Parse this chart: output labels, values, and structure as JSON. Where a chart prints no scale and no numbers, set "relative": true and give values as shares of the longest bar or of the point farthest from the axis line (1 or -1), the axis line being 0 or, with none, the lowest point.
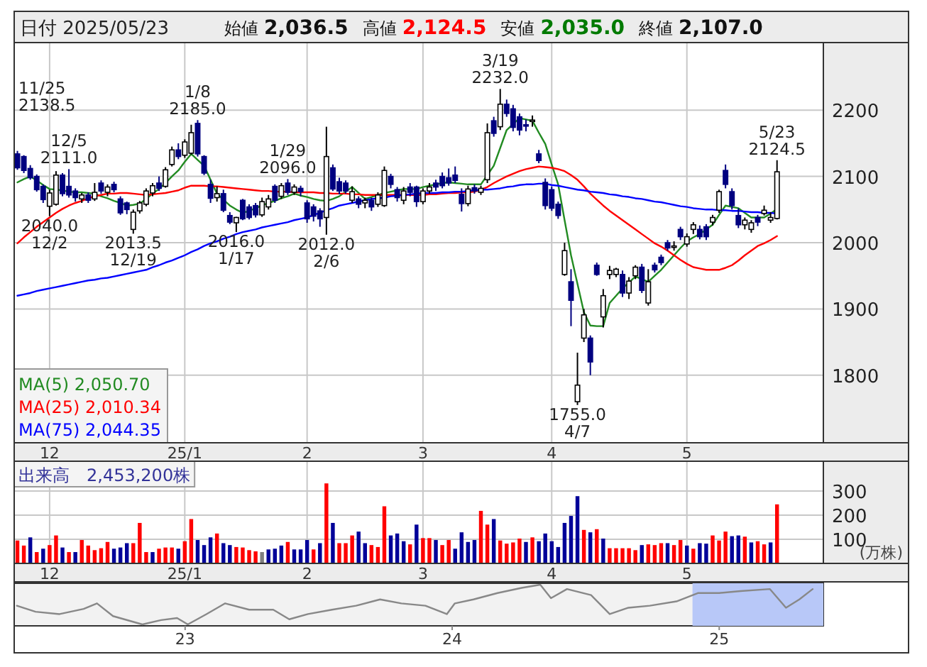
{
  "chart_data": [
    {
      "type": "candlestick",
      "title": "日付 2025/05/23",
      "subtitle": "始値 2,036.5 高値 2,124.5 安値 2,035.0 終値 2,107.0",
      "categories": [
        null,
        null,
        null,
        null,
        null,
        "12",
        null,
        null,
        null,
        null,
        null,
        null,
        null,
        null,
        null,
        null,
        null,
        null,
        null,
        null,
        null,
        null,
        null,
        null,
        null,
        null,
        "25/1",
        null,
        null,
        null,
        null,
        null,
        null,
        null,
        null,
        null,
        null,
        null,
        null,
        null,
        null,
        null,
        null,
        null,
        null,
        "2",
        null,
        null,
        null,
        null,
        null,
        null,
        null,
        null,
        null,
        null,
        null,
        null,
        null,
        null,
        null,
        null,
        null,
        "3",
        null,
        null,
        null,
        null,
        null,
        null,
        null,
        null,
        null,
        null,
        null,
        null,
        null,
        null,
        null,
        null,
        null,
        null,
        null,
        "4",
        null,
        null,
        null,
        null,
        null,
        null,
        null,
        null,
        null,
        null,
        null,
        null,
        null,
        null,
        null,
        null,
        null,
        null,
        null,
        null,
        "5",
        null,
        null,
        null,
        null,
        null,
        null,
        null,
        null,
        null,
        null,
        null,
        null,
        null,
        null
      ],
      "ohlc": [
        [
          2134,
          2138.5,
          2110,
          2113
        ],
        [
          2130,
          2132,
          2105,
          2109
        ],
        [
          2112,
          2117,
          2095,
          2098
        ],
        [
          2100,
          2103,
          2077,
          2080
        ],
        [
          2085,
          2088,
          2060,
          2065
        ],
        [
          2055,
          2080,
          2040,
          2075
        ],
        [
          2058,
          2108,
          2056,
          2102
        ],
        [
          2102,
          2105,
          2070,
          2074
        ],
        [
          2085,
          2111,
          2068,
          2072
        ],
        [
          2078,
          2082,
          2062,
          2068
        ],
        [
          2066,
          2075,
          2060,
          2072
        ],
        [
          2072,
          2076,
          2060,
          2064
        ],
        [
          2066,
          2090,
          2063,
          2076
        ],
        [
          2090,
          2094,
          2074,
          2078
        ],
        [
          2076,
          2088,
          2070,
          2084
        ],
        [
          2088,
          2092,
          2076,
          2080
        ],
        [
          2066,
          2070,
          2042,
          2045
        ],
        [
          2060,
          2062,
          2043,
          2050
        ],
        [
          2020,
          2050,
          2013.5,
          2046
        ],
        [
          2048,
          2063,
          2044,
          2060
        ],
        [
          2058,
          2082,
          2055,
          2078
        ],
        [
          2075,
          2090,
          2070,
          2086
        ],
        [
          2090,
          2100,
          2078,
          2082
        ],
        [
          2085,
          2114,
          2083,
          2110
        ],
        [
          2118,
          2145,
          2115,
          2140
        ],
        [
          2140,
          2150,
          2126,
          2130
        ],
        [
          2132,
          2156,
          2128,
          2152
        ],
        [
          2135,
          2178,
          2133,
          2166
        ],
        [
          2180,
          2185,
          2130,
          2134
        ],
        [
          2130,
          2132,
          2102,
          2105
        ],
        [
          2088,
          2095,
          2060,
          2067
        ],
        [
          2068,
          2085,
          2062,
          2074
        ],
        [
          2074,
          2080,
          2046,
          2049
        ],
        [
          2041,
          2046,
          2028,
          2031
        ],
        [
          2030,
          2039,
          2016,
          2038
        ],
        [
          2064,
          2066,
          2034,
          2036
        ],
        [
          2054,
          2058,
          2035,
          2038
        ],
        [
          2056,
          2060,
          2038,
          2042
        ],
        [
          2042,
          2068,
          2039,
          2062
        ],
        [
          2054,
          2072,
          2050,
          2066
        ],
        [
          2085,
          2088,
          2060,
          2064
        ],
        [
          2070,
          2090,
          2066,
          2086
        ],
        [
          2090,
          2096,
          2072,
          2076
        ],
        [
          2076,
          2088,
          2072,
          2084
        ],
        [
          2082,
          2086,
          2070,
          2077
        ],
        [
          2060,
          2064,
          2030,
          2036
        ],
        [
          2054,
          2058,
          2032,
          2040
        ],
        [
          2048,
          2052,
          2024,
          2036
        ],
        [
          2038,
          2175,
          2012,
          2130
        ],
        [
          2113,
          2118,
          2078,
          2081
        ],
        [
          2092,
          2098,
          2073,
          2078
        ],
        [
          2090,
          2094,
          2074,
          2078
        ],
        [
          2064,
          2085,
          2060,
          2077
        ],
        [
          2066,
          2070,
          2052,
          2058
        ],
        [
          2060,
          2068,
          2052,
          2064
        ],
        [
          2064,
          2068,
          2048,
          2054
        ],
        [
          2058,
          2076,
          2054,
          2072
        ],
        [
          2056,
          2115,
          2054,
          2109
        ],
        [
          2100,
          2104,
          2082,
          2088
        ],
        [
          2080,
          2084,
          2062,
          2068
        ],
        [
          2064,
          2084,
          2058,
          2078
        ],
        [
          2084,
          2090,
          2070,
          2076
        ],
        [
          2084,
          2086,
          2054,
          2062
        ],
        [
          2062,
          2082,
          2058,
          2078
        ],
        [
          2078,
          2090,
          2074,
          2084
        ],
        [
          2090,
          2095,
          2078,
          2084
        ],
        [
          2100,
          2106,
          2082,
          2086
        ],
        [
          2098,
          2112,
          2086,
          2090
        ],
        [
          2102,
          2115,
          2090,
          2094
        ],
        [
          2073,
          2082,
          2047,
          2059
        ],
        [
          2059,
          2086,
          2055,
          2081
        ],
        [
          2083,
          2088,
          2074,
          2078
        ],
        [
          2076,
          2086,
          2072,
          2082
        ],
        [
          2095,
          2180,
          2090,
          2166
        ],
        [
          2184,
          2190,
          2160,
          2165
        ],
        [
          2175,
          2232,
          2170,
          2209
        ],
        [
          2209,
          2216,
          2190,
          2195
        ],
        [
          2202,
          2208,
          2168,
          2174
        ],
        [
          2190,
          2195,
          2162,
          2170
        ],
        [
          2178,
          2186,
          2168,
          2176
        ],
        [
          2184,
          2192,
          2175,
          2185
        ],
        [
          2134,
          2140,
          2120,
          2124
        ],
        [
          2091,
          2097,
          2050,
          2056
        ],
        [
          2080,
          2085,
          2048,
          2052
        ],
        [
          2058,
          2062,
          2036,
          2041
        ],
        [
          1952,
          2000,
          1950,
          1988
        ],
        [
          1941,
          1960,
          1874,
          1913
        ],
        [
          1760,
          1834,
          1755,
          1785
        ],
        [
          1856,
          1900,
          1850,
          1891
        ],
        [
          1856,
          1860,
          1800,
          1820
        ],
        [
          1966,
          1970,
          1950,
          1952
        ],
        [
          1888,
          1930,
          1872,
          1920
        ],
        [
          1952,
          1965,
          1945,
          1958
        ],
        [
          1952,
          1962,
          1948,
          1960
        ],
        [
          1952,
          1958,
          1918,
          1924
        ],
        [
          1924,
          1948,
          1915,
          1942
        ],
        [
          1950,
          1966,
          1945,
          1963
        ],
        [
          1963,
          1968,
          1924,
          1928
        ],
        [
          1909,
          1960,
          1905,
          1941
        ],
        [
          1966,
          1970,
          1955,
          1959
        ],
        [
          1978,
          1982,
          1966,
          1970
        ],
        [
          2000,
          2004,
          1988,
          1992
        ],
        [
          1994,
          2002,
          1988,
          1995
        ],
        [
          2020,
          2024,
          2004,
          2009
        ],
        [
          1998,
          2014,
          1994,
          2009
        ],
        [
          2020,
          2031,
          2013,
          2027
        ],
        [
          2020,
          2026,
          2005,
          2009
        ],
        [
          2024,
          2028,
          2004,
          2009
        ],
        [
          2031,
          2042,
          2026,
          2038
        ],
        [
          2049,
          2080,
          2045,
          2077
        ],
        [
          2109,
          2118,
          2082,
          2088
        ],
        [
          2077,
          2082,
          2050,
          2056
        ],
        [
          2041,
          2052,
          2022,
          2027
        ],
        [
          2027,
          2038,
          2020,
          2034
        ],
        [
          2020,
          2034,
          2015,
          2030
        ],
        [
          2038,
          2042,
          2025,
          2031
        ],
        [
          2044,
          2056,
          2041,
          2049
        ],
        [
          2034,
          2046,
          2030,
          2038
        ],
        [
          2036.5,
          2124.5,
          2035.0,
          2107.0
        ]
      ],
      "series": [
        {
          "name": "MA(5) 2,050.70",
          "color": "#228b22",
          "type": "line",
          "values": [
            2091,
            2096,
            2100,
            2094,
            2087,
            2081,
            2080,
            2079,
            2077,
            2076,
            2076,
            2075,
            2074,
            2070,
            2067,
            2063,
            2060,
            2056,
            2057,
            2059,
            2066,
            2074,
            2081,
            2090,
            2100,
            2109,
            2122,
            2134,
            2125,
            2116,
            2095,
            2074,
            2065,
            2056,
            2050,
            2045,
            2048,
            2052,
            2056,
            2060,
            2063,
            2067,
            2070,
            2074,
            2071,
            2069,
            2066,
            2064,
            2063,
            2066,
            2070,
            2077,
            2084,
            2075,
            2066,
            2069,
            2072,
            2075,
            2077,
            2079,
            2081,
            2081,
            2081,
            2084,
            2086,
            2088,
            2090,
            2091,
            2090,
            2089,
            2088,
            2088,
            2088,
            2102,
            2116,
            2143,
            2170,
            2179,
            2188,
            2186,
            2184,
            2166,
            2149,
            2118,
            2088,
            2034,
            1981,
            1938,
            1895,
            1875,
            1874,
            1874,
            1909,
            1920,
            1931,
            1940,
            1949,
            1945,
            1941,
            1950,
            1959,
            1970,
            1981,
            1992,
            2002,
            2008,
            2013,
            2020,
            2027,
            2042,
            2056,
            2054,
            2052,
            2045,
            2038,
            2038,
            2038,
            2044,
            2051
          ]
        },
        {
          "name": "MA(25) 2,010.34",
          "color": "#ff0000",
          "type": "line",
          "values": [
            1999,
            2008,
            2016,
            2024,
            2031,
            2038,
            2045,
            2051,
            2056,
            2060,
            2063,
            2067,
            2070,
            2072,
            2074,
            2074,
            2075,
            2075,
            2074,
            2073,
            2072,
            2073,
            2074,
            2075,
            2077,
            2079,
            2083,
            2086,
            2086,
            2086,
            2085,
            2085,
            2084,
            2083,
            2082,
            2081,
            2080,
            2079,
            2078,
            2078,
            2077,
            2077,
            2077,
            2076,
            2076,
            2076,
            2076,
            2075,
            2075,
            2074,
            2074,
            2074,
            2073,
            2073,
            2072,
            2072,
            2072,
            2072,
            2072,
            2072,
            2072,
            2072,
            2072,
            2072,
            2073,
            2073,
            2074,
            2075,
            2075,
            2076,
            2076,
            2077,
            2080,
            2084,
            2090,
            2095,
            2100,
            2104,
            2108,
            2111,
            2113,
            2115,
            2114,
            2113,
            2111,
            2108,
            2102,
            2095,
            2085,
            2074,
            2065,
            2056,
            2048,
            2041,
            2034,
            2027,
            2020,
            2013,
            2006,
            1999,
            1994,
            1988,
            1981,
            1974,
            1968,
            1963,
            1961,
            1959,
            1959,
            1959,
            1962,
            1966,
            1973,
            1981,
            1988,
            1995,
            1999,
            2004,
            2010
          ]
        },
        {
          "name": "MA(75) 2,044.35",
          "color": "#0000ff",
          "type": "line",
          "values": [
            1920,
            1922,
            1924,
            1927,
            1929,
            1931,
            1933,
            1935,
            1937,
            1939,
            1941,
            1943,
            1944,
            1946,
            1947,
            1949,
            1951,
            1953,
            1955,
            1957,
            1959,
            1963,
            1966,
            1970,
            1973,
            1977,
            1981,
            1986,
            1990,
            1995,
            1999,
            2002,
            2006,
            2009,
            2013,
            2016,
            2018,
            2020,
            2023,
            2025,
            2027,
            2029,
            2031,
            2034,
            2036,
            2038,
            2042,
            2045,
            2049,
            2052,
            2056,
            2058,
            2060,
            2062,
            2064,
            2066,
            2067,
            2068,
            2070,
            2071,
            2072,
            2073,
            2074,
            2075,
            2075,
            2075,
            2076,
            2076,
            2077,
            2077,
            2078,
            2079,
            2080,
            2080,
            2081,
            2082,
            2084,
            2085,
            2087,
            2088,
            2088,
            2089,
            2089,
            2087,
            2086,
            2084,
            2082,
            2080,
            2079,
            2077,
            2076,
            2075,
            2073,
            2072,
            2070,
            2069,
            2067,
            2066,
            2064,
            2062,
            2061,
            2059,
            2057,
            2055,
            2054,
            2052,
            2051,
            2050,
            2050,
            2049,
            2049,
            2048,
            2048,
            2047,
            2046,
            2046,
            2045,
            2045,
            2044
          ]
        }
      ],
      "ylim": [
        1698,
        2302
      ],
      "yticks": [
        1800,
        1900,
        2000,
        2100,
        2200
      ],
      "grid": true,
      "legend": "bottom left",
      "annotations": [
        {
          "text": "12/5\n2111.0",
          "y": 2111.0
        },
        "11/25\n2138.5",
        {
          "text": "2040.0\n12/2",
          "y": 2040.0
        },
        {
          "text": "2013.5\n12/19",
          "y": 2013.5
        },
        {
          "text": "1/8\n2185.0",
          "y": 2185.0
        },
        {
          "text": "2016.0\n1/17",
          "y": 2016.0
        },
        {
          "text": "1/29\n2096.0",
          "y": 2096.0
        },
        {
          "text": "2012.0\n2/6",
          "y": 2012.0
        },
        {
          "text": "3/19\n2232.0",
          "y": 2232.0
        },
        {
          "text": "1755.0\n4/7",
          "y": 1755.0
        },
        {
          "text": "5/23\n2124.5",
          "y": 2124.5
        }
      ]
    },
    {
      "type": "bar",
      "title": "出来高　2,453,200株",
      "ylabel": "(万株)",
      "categories": [
        null,
        null,
        null,
        null,
        null,
        "12",
        null,
        null,
        null,
        null,
        null,
        null,
        null,
        null,
        null,
        null,
        null,
        null,
        null,
        null,
        null,
        null,
        null,
        null,
        null,
        null,
        "25/1",
        null,
        null,
        null,
        null,
        null,
        null,
        null,
        null,
        null,
        null,
        null,
        null,
        null,
        null,
        null,
        null,
        null,
        null,
        "2",
        null,
        null,
        null,
        null,
        null,
        null,
        null,
        null,
        null,
        null,
        null,
        null,
        null,
        null,
        null,
        null,
        null,
        "3",
        null,
        null,
        null,
        null,
        null,
        null,
        null,
        null,
        null,
        null,
        null,
        null,
        null,
        null,
        null,
        null,
        null,
        null,
        null,
        "4",
        null,
        null,
        null,
        null,
        null,
        null,
        null,
        null,
        null,
        null,
        null,
        null,
        null,
        null,
        null,
        null,
        null,
        null,
        null,
        null,
        "5",
        null,
        null,
        null,
        null,
        null,
        null,
        null,
        null,
        null,
        null,
        null,
        null,
        null,
        null
      ],
      "values": [
        95,
        74,
        108,
        47,
        61,
        76,
        116,
        66,
        47,
        47,
        97,
        74,
        55,
        63,
        89,
        61,
        66,
        84,
        84,
        168,
        47,
        47,
        61,
        66,
        66,
        61,
        92,
        184,
        97,
        76,
        108,
        124,
        84,
        76,
        68,
        66,
        55,
        50,
        47,
        58,
        61,
        74,
        89,
        58,
        58,
        97,
        58,
        84,
        332,
        168,
        84,
        84,
        116,
        132,
        84,
        76,
        68,
        237,
        116,
        124,
        92,
        79,
        161,
        105,
        105,
        97,
        76,
        97,
        61,
        129,
        89,
        97,
        218,
        161,
        184,
        95,
        82,
        87,
        103,
        89,
        108,
        92,
        124,
        92,
        68,
        168,
        197,
        279,
        139,
        129,
        142,
        103,
        63,
        63,
        63,
        63,
        55,
        76,
        79,
        76,
        84,
        84,
        76,
        97,
        74,
        61,
        84,
        82,
        116,
        95,
        132,
        113,
        116,
        111,
        87,
        92,
        79,
        87,
        245
      ],
      "colors": [
        "#ff0000",
        "#ff0000",
        "#000099",
        "#ff0000",
        "#000099",
        "#ff0000",
        "#ff0000",
        "#000099",
        "#ff0000",
        "#000099",
        "#ff0000",
        "#ff0000",
        "#ff0000",
        "#ff0000",
        "#ff0000",
        "#000099",
        "#000099",
        "#000099",
        "#ff0000",
        "#ff0000",
        "#ff0000",
        "#000099",
        "#ff0000",
        "#ff0000",
        "#ff0000",
        "#000099",
        "#ff0000",
        "#ff0000",
        "#000099",
        "#000099",
        "#000099",
        "#ff0000",
        "#000099",
        "#000099",
        "#ff0000",
        "#ff0000",
        "#ff0000",
        "#ff0000",
        "#808080",
        "#000099",
        "#000099",
        "#000099",
        "#ff0000",
        "#000099",
        "#000099",
        "#000099",
        "#ff0000",
        "#000099",
        "#ff0000",
        "#000099",
        "#ff0000",
        "#ff0000",
        "#ff0000",
        "#000099",
        "#000099",
        "#ff0000",
        "#ff0000",
        "#ff0000",
        "#000099",
        "#000099",
        "#000099",
        "#ff0000",
        "#000099",
        "#ff0000",
        "#ff0000",
        "#000099",
        "#ff0000",
        "#ff0000",
        "#000099",
        "#000099",
        "#000099",
        "#000099",
        "#ff0000",
        "#ff0000",
        "#000099",
        "#ff0000",
        "#ff0000",
        "#ff0000",
        "#ff0000",
        "#000099",
        "#ff0000",
        "#000099",
        "#000099",
        "#000099",
        "#000099",
        "#000099",
        "#000099",
        "#000099",
        "#ff0000",
        "#000099",
        "#ff0000",
        "#000099",
        "#ff0000",
        "#ff0000",
        "#ff0000",
        "#ff0000",
        "#ff0000",
        "#000099",
        "#ff0000",
        "#ff0000",
        "#ff0000",
        "#000099",
        "#ff0000",
        "#ff0000",
        "#000099",
        "#ff0000",
        "#000099",
        "#000099",
        "#ff0000",
        "#ff0000",
        "#ff0000",
        "#000099",
        "#000099",
        "#ff0000",
        "#000099",
        "#ff0000",
        "#ff0000",
        "#000099",
        "#ff0000"
      ],
      "ylim": [
        0,
        424
      ],
      "yticks": [
        100,
        200,
        300
      ],
      "grid": true
    },
    {
      "type": "line",
      "relative": true,
      "x": [
        2022.37,
        2022.44,
        2022.53,
        2022.62,
        2022.67,
        2022.73,
        2022.84,
        2022.91,
        2022.97,
        2023.01,
        2023.08,
        2023.15,
        2023.24,
        2023.33,
        2023.39,
        2023.46,
        2023.55,
        2023.64,
        2023.73,
        2023.81,
        2023.9,
        2023.98,
        2024.01,
        2024.08,
        2024.17,
        2024.26,
        2024.33,
        2024.37,
        2024.43,
        2024.52,
        2024.59,
        2024.66,
        2024.74,
        2024.84,
        2024.92,
        2025.0,
        2025.08,
        2025.19,
        2025.25,
        2025.3,
        2025.35
      ],
      "xlim": [
        2022.36,
        2025.39
      ],
      "xticks": [
        {
          "value": 2023,
          "label": "23"
        },
        {
          "value": 2024,
          "label": "24"
        },
        {
          "value": 2025,
          "label": "25"
        }
      ],
      "series": [
        {
          "color": "#888888",
          "values": [
            0.47,
            0.32,
            0.26,
            0.39,
            0.53,
            0.21,
            0,
            0.11,
            0.16,
            0,
            0.26,
            0.53,
            0.37,
            0.37,
            0.13,
            0.26,
            0.37,
            0.47,
            0.63,
            0.53,
            0.47,
            0.26,
            0.53,
            0.63,
            0.79,
            0.92,
            1,
            0.66,
            0.89,
            0.74,
            0.26,
            0.42,
            0.47,
            0.58,
            0.79,
            0.79,
            0.84,
            0.89,
            0.42,
            0.63,
            0.89
          ]
        }
      ],
      "bands": [
        {
          "axis": "x",
          "from": 2024.9,
          "to": 2025.39,
          "color": "#b8c8f8"
        }
      ]
    }
  ]
}
